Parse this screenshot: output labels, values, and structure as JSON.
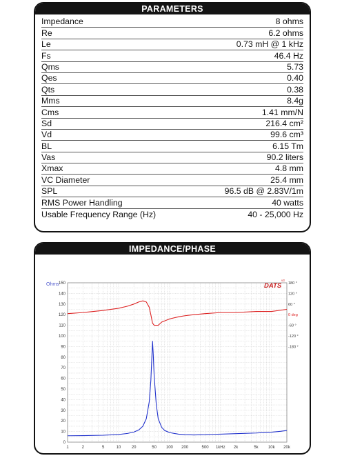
{
  "parameters": {
    "title": "PARAMETERS",
    "rows": [
      {
        "label": "Impedance",
        "value": "8 ohms"
      },
      {
        "label": "Re",
        "value": "6.2 ohms"
      },
      {
        "label": "Le",
        "value": "0.73 mH @ 1 kHz"
      },
      {
        "label": "Fs",
        "value": "46.4 Hz"
      },
      {
        "label": "Qms",
        "value": "5.73"
      },
      {
        "label": "Qes",
        "value": "0.40"
      },
      {
        "label": "Qts",
        "value": "0.38"
      },
      {
        "label": "Mms",
        "value": "8.4g"
      },
      {
        "label": "Cms",
        "value": "1.41 mm/N"
      },
      {
        "label": "Sd",
        "value": "216.4 cm²"
      },
      {
        "label": "Vd",
        "value": "99.6 cm³"
      },
      {
        "label": "BL",
        "value": "6.15 Tm"
      },
      {
        "label": "Vas",
        "value": "90.2 liters"
      },
      {
        "label": "Xmax",
        "value": "4.8 mm"
      },
      {
        "label": "VC Diameter",
        "value": "25.4 mm"
      },
      {
        "label": "SPL",
        "value": "96.5 dB @ 2.83V/1m"
      },
      {
        "label": "RMS Power Handling",
        "value": "40 watts"
      },
      {
        "label": "Usable Frequency Range (Hz)",
        "value": "40 - 25,000 Hz"
      }
    ]
  },
  "impedance_panel": {
    "title": "IMPEDANCE/PHASE",
    "brand": "DATS",
    "brand_sup": "v3",
    "left_unit": "Ohms",
    "right_unit": "deg"
  },
  "chart_data": {
    "type": "line",
    "x_scale": "log",
    "xlim": [
      1,
      20000
    ],
    "x_ticks": [
      1,
      2,
      5,
      10,
      20,
      50,
      100,
      200,
      500,
      1000,
      2000,
      5000,
      10000,
      20000
    ],
    "x_tick_labels": [
      "1",
      "2",
      "5",
      "10",
      "20",
      "50",
      "100",
      "200",
      "500",
      "1kHz",
      "2k",
      "5k",
      "10k",
      "20k"
    ],
    "ylim": [
      0,
      150
    ],
    "y_ticks": [
      0,
      10,
      20,
      30,
      40,
      50,
      60,
      70,
      80,
      90,
      100,
      110,
      120,
      130,
      140,
      150
    ],
    "y_right_ticks": [
      {
        "label": "180 °",
        "deg": 180
      },
      {
        "label": "120 °",
        "deg": 120
      },
      {
        "label": "60 °",
        "deg": 60
      },
      {
        "label": "0 deg",
        "deg": 0
      },
      {
        "label": "-60 °",
        "deg": -60
      },
      {
        "label": "-120 °",
        "deg": -120
      },
      {
        "label": "-180 °",
        "deg": -180
      }
    ],
    "grid": true,
    "colors": {
      "impedance": "#2233cc",
      "phase": "#dd2222"
    },
    "series": [
      {
        "name": "Impedance",
        "color": "#2233cc",
        "points": [
          [
            1,
            6
          ],
          [
            2,
            6.1
          ],
          [
            5,
            6.5
          ],
          [
            10,
            7.2
          ],
          [
            15,
            8.2
          ],
          [
            20,
            9.5
          ],
          [
            25,
            11.5
          ],
          [
            30,
            15
          ],
          [
            35,
            22
          ],
          [
            40,
            38
          ],
          [
            43,
            58
          ],
          [
            45,
            80
          ],
          [
            46.4,
            95
          ],
          [
            48,
            82
          ],
          [
            50,
            62
          ],
          [
            55,
            35
          ],
          [
            60,
            22
          ],
          [
            70,
            14
          ],
          [
            80,
            11
          ],
          [
            100,
            9
          ],
          [
            150,
            7.5
          ],
          [
            200,
            7
          ],
          [
            300,
            6.8
          ],
          [
            500,
            7
          ],
          [
            700,
            7.3
          ],
          [
            1000,
            7.5
          ],
          [
            2000,
            8
          ],
          [
            5000,
            8.6
          ],
          [
            10000,
            9.4
          ],
          [
            15000,
            10.2
          ],
          [
            20000,
            11
          ]
        ]
      },
      {
        "name": "Phase",
        "color": "#dd2222",
        "points": [
          [
            1,
            121
          ],
          [
            2,
            122
          ],
          [
            5,
            124
          ],
          [
            10,
            126
          ],
          [
            15,
            128
          ],
          [
            20,
            130
          ],
          [
            25,
            132
          ],
          [
            30,
            133
          ],
          [
            35,
            132
          ],
          [
            40,
            127
          ],
          [
            43,
            120
          ],
          [
            46.4,
            112
          ],
          [
            50,
            110
          ],
          [
            60,
            110
          ],
          [
            70,
            113
          ],
          [
            100,
            116
          ],
          [
            150,
            118
          ],
          [
            200,
            119
          ],
          [
            300,
            120
          ],
          [
            500,
            121
          ],
          [
            1000,
            122
          ],
          [
            2000,
            122
          ],
          [
            5000,
            123
          ],
          [
            10000,
            123
          ],
          [
            20000,
            125
          ]
        ]
      }
    ]
  }
}
